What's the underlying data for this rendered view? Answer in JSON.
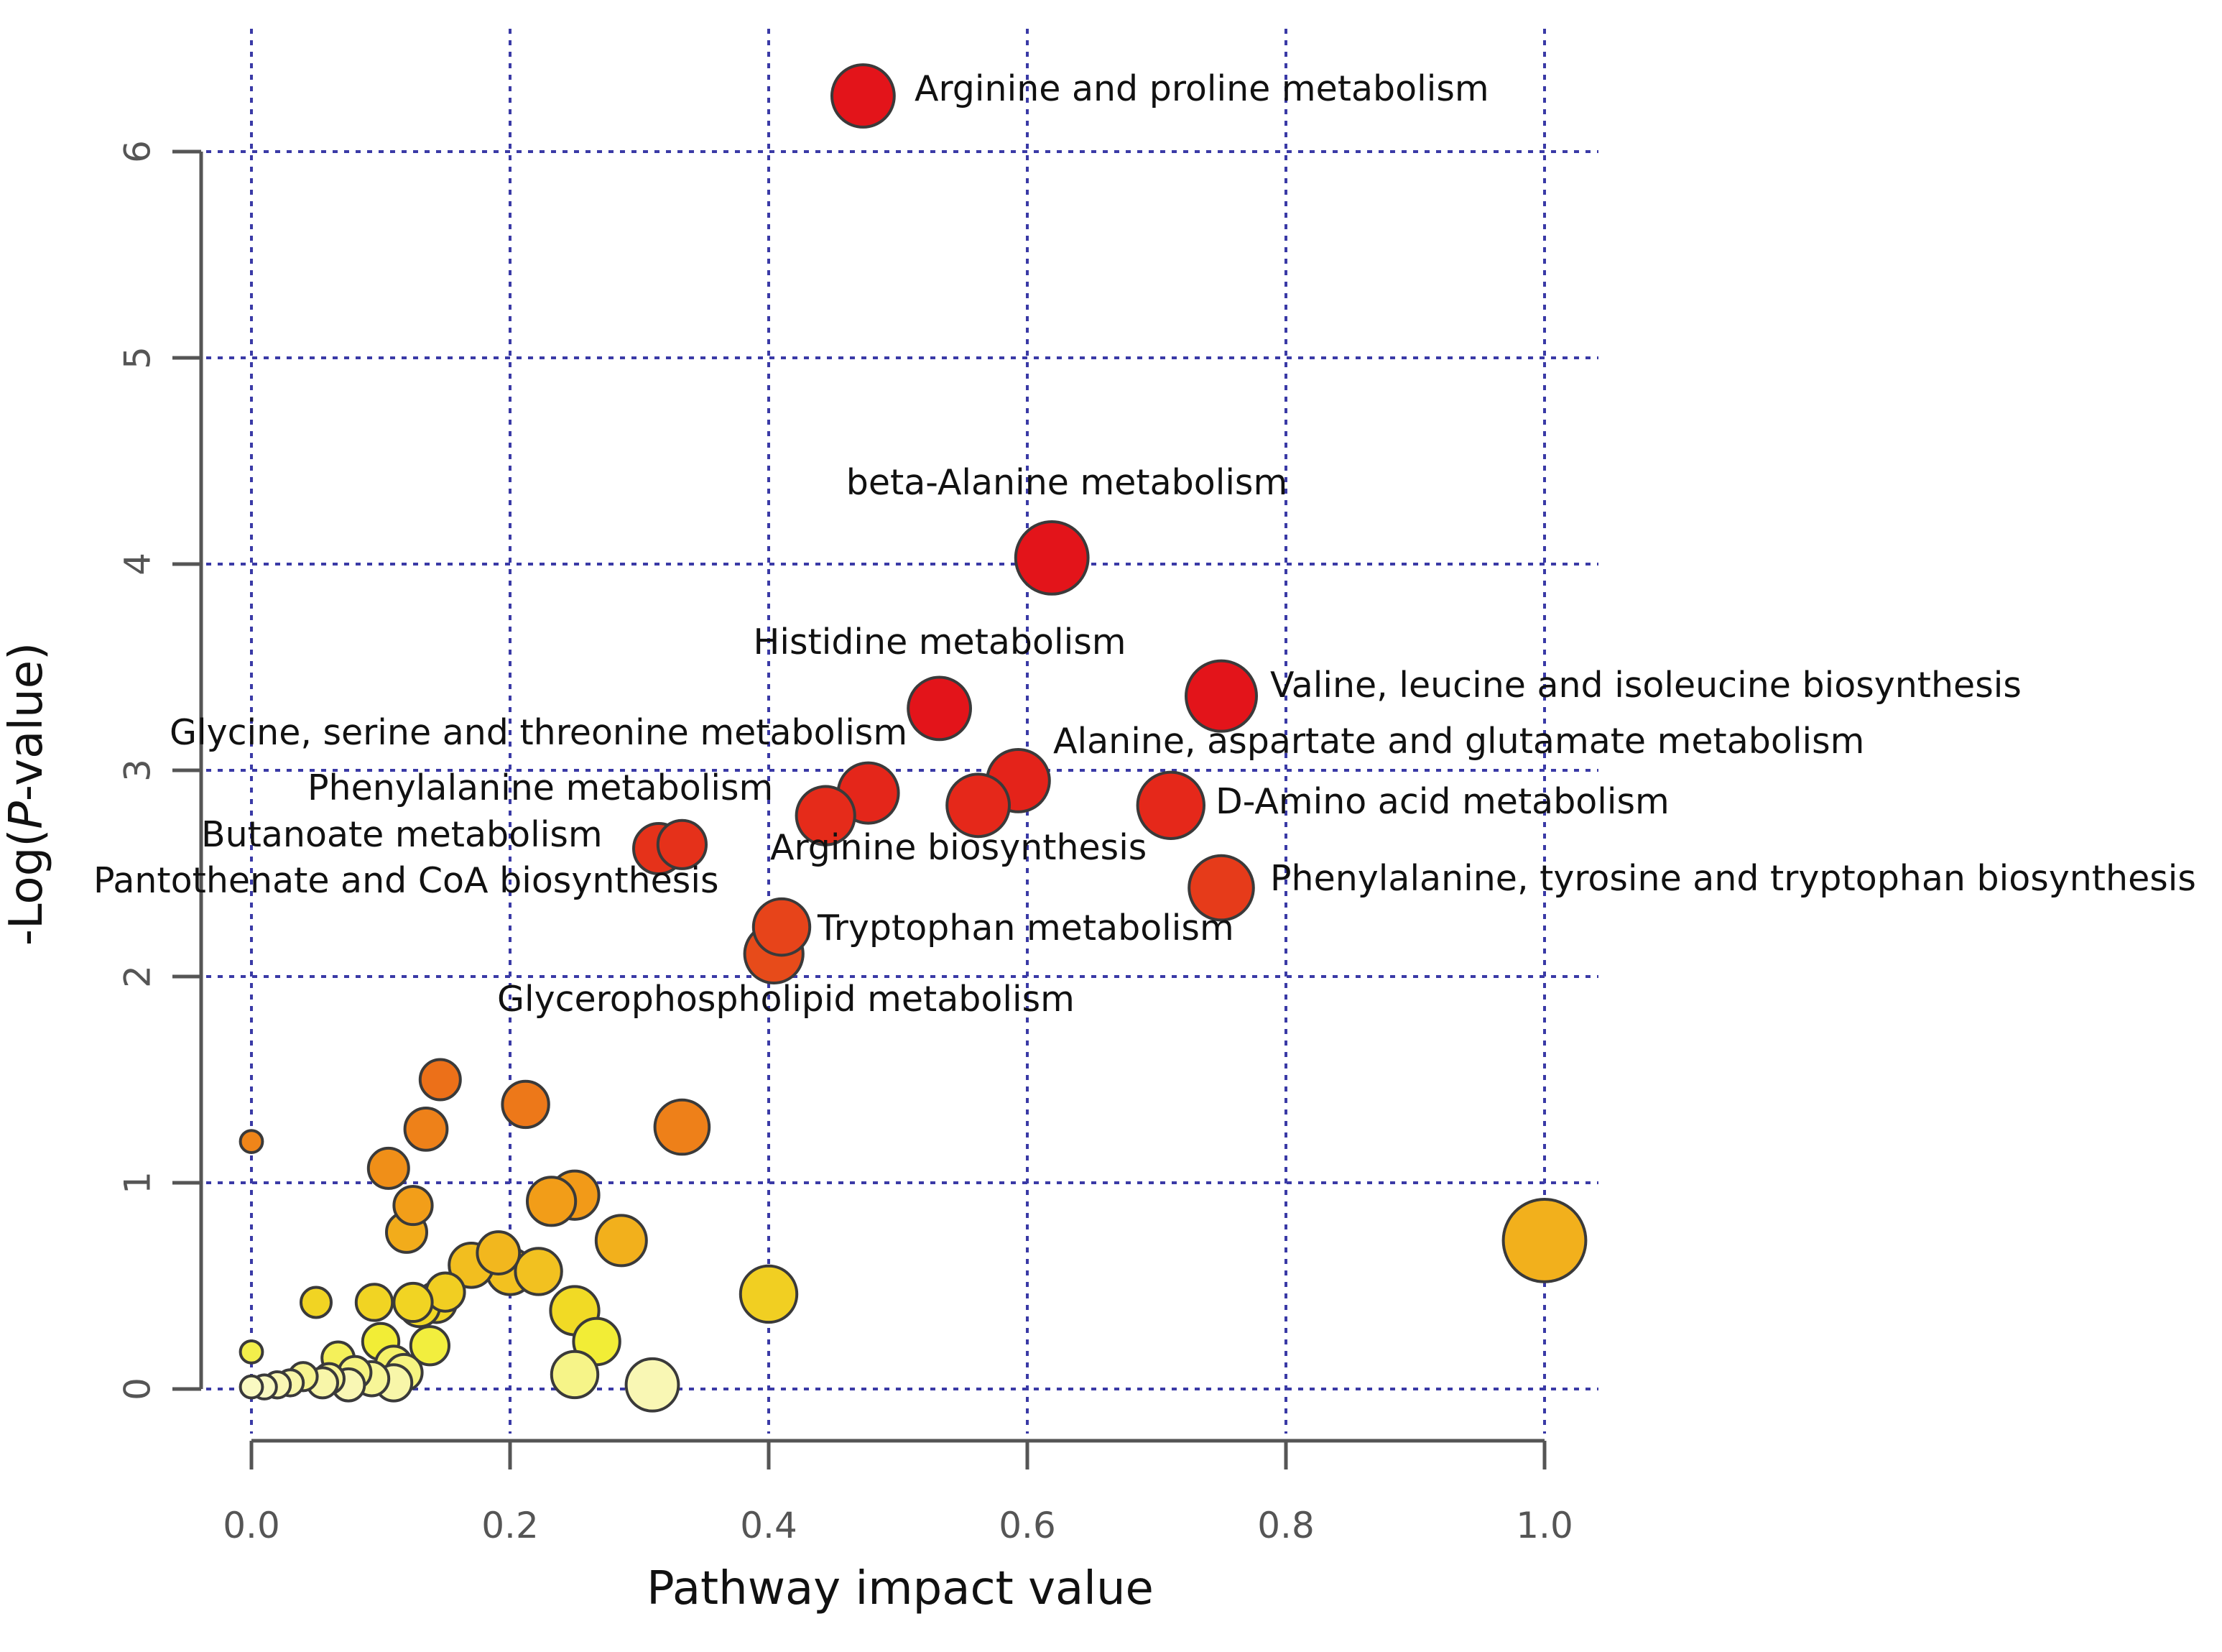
{
  "chart_data": {
    "type": "scatter",
    "xlabel": "Pathway impact value",
    "ylabel": "-Log(P-value)",
    "ylabel_parts": [
      "-Log(",
      "P",
      "-value)"
    ],
    "xlim": [
      0.0,
      1.0
    ],
    "ylim": [
      0,
      6
    ],
    "x_ticks": [
      "0.0",
      "0.2",
      "0.4",
      "0.6",
      "0.8",
      "1.0"
    ],
    "y_ticks": [
      "0",
      "1",
      "2",
      "3",
      "4",
      "5",
      "6"
    ],
    "grid": true,
    "color_scale": [
      "#fbfbe0",
      "#f1ec28",
      "#f29a18",
      "#e8531a",
      "#e3141a"
    ],
    "points": [
      {
        "x": 0.473,
        "y": 6.27,
        "size": 0.62,
        "label": "Arginine and proline metabolism"
      },
      {
        "x": 0.619,
        "y": 4.03,
        "size": 0.72,
        "label": "beta-Alanine metabolism"
      },
      {
        "x": 0.532,
        "y": 3.3,
        "size": 0.62,
        "label": "Histidine metabolism"
      },
      {
        "x": 0.75,
        "y": 3.36,
        "size": 0.7,
        "label": "Valine, leucine and isoleucine biosynthesis"
      },
      {
        "x": 0.477,
        "y": 2.89,
        "size": 0.6,
        "label": "Glycine, serine and threonine metabolism"
      },
      {
        "x": 0.593,
        "y": 2.95,
        "size": 0.62,
        "label": "Alanine, aspartate and glutamate metabolism"
      },
      {
        "x": 0.444,
        "y": 2.78,
        "size": 0.58,
        "label": "Phenylalanine metabolism"
      },
      {
        "x": 0.562,
        "y": 2.83,
        "size": 0.62,
        "label": "Arginine biosynthesis"
      },
      {
        "x": 0.711,
        "y": 2.83,
        "size": 0.66,
        "label": "D-Amino acid metabolism"
      },
      {
        "x": 0.333,
        "y": 2.64,
        "size": 0.48,
        "label": "Butanoate metabolism"
      },
      {
        "x": 0.315,
        "y": 2.62,
        "size": 0.5,
        "label": "Pantothenate and CoA biosynthesis"
      },
      {
        "x": 0.75,
        "y": 2.43,
        "size": 0.64,
        "label": "Phenylalanine, tyrosine and tryptophan biosynthesis"
      },
      {
        "x": 0.41,
        "y": 2.24,
        "size": 0.56,
        "label": "Tryptophan metabolism"
      },
      {
        "x": 0.404,
        "y": 2.11,
        "size": 0.58,
        "label": "Glycerophospholipid metabolism"
      },
      {
        "x": 0.146,
        "y": 1.5,
        "size": 0.4,
        "label": ""
      },
      {
        "x": 0.212,
        "y": 1.38,
        "size": 0.46,
        "label": ""
      },
      {
        "x": 0.333,
        "y": 1.27,
        "size": 0.54,
        "label": ""
      },
      {
        "x": 0.135,
        "y": 1.26,
        "size": 0.42,
        "label": ""
      },
      {
        "x": 0.0,
        "y": 1.2,
        "size": 0.22,
        "label": ""
      },
      {
        "x": 0.106,
        "y": 1.07,
        "size": 0.4,
        "label": ""
      },
      {
        "x": 0.25,
        "y": 0.94,
        "size": 0.48,
        "label": ""
      },
      {
        "x": 0.232,
        "y": 0.91,
        "size": 0.48,
        "label": ""
      },
      {
        "x": 0.125,
        "y": 0.89,
        "size": 0.38,
        "label": ""
      },
      {
        "x": 0.12,
        "y": 0.76,
        "size": 0.4,
        "label": ""
      },
      {
        "x": 1.0,
        "y": 0.72,
        "size": 0.82,
        "label": ""
      },
      {
        "x": 0.286,
        "y": 0.72,
        "size": 0.5,
        "label": ""
      },
      {
        "x": 0.191,
        "y": 0.66,
        "size": 0.42,
        "label": ""
      },
      {
        "x": 0.17,
        "y": 0.6,
        "size": 0.44,
        "label": ""
      },
      {
        "x": 0.2,
        "y": 0.57,
        "size": 0.46,
        "label": ""
      },
      {
        "x": 0.222,
        "y": 0.57,
        "size": 0.46,
        "label": ""
      },
      {
        "x": 0.4,
        "y": 0.46,
        "size": 0.56,
        "label": ""
      },
      {
        "x": 0.15,
        "y": 0.47,
        "size": 0.38,
        "label": ""
      },
      {
        "x": 0.143,
        "y": 0.42,
        "size": 0.4,
        "label": ""
      },
      {
        "x": 0.125,
        "y": 0.42,
        "size": 0.38,
        "label": ""
      },
      {
        "x": 0.095,
        "y": 0.42,
        "size": 0.36,
        "label": ""
      },
      {
        "x": 0.05,
        "y": 0.42,
        "size": 0.3,
        "label": ""
      },
      {
        "x": 0.13,
        "y": 0.4,
        "size": 0.4,
        "label": ""
      },
      {
        "x": 0.25,
        "y": 0.38,
        "size": 0.48,
        "label": ""
      },
      {
        "x": 0.267,
        "y": 0.23,
        "size": 0.46,
        "label": ""
      },
      {
        "x": 0.1,
        "y": 0.23,
        "size": 0.36,
        "label": ""
      },
      {
        "x": 0.138,
        "y": 0.21,
        "size": 0.38,
        "label": ""
      },
      {
        "x": 0.0,
        "y": 0.18,
        "size": 0.22,
        "label": ""
      },
      {
        "x": 0.067,
        "y": 0.15,
        "size": 0.32,
        "label": ""
      },
      {
        "x": 0.11,
        "y": 0.12,
        "size": 0.36,
        "label": ""
      },
      {
        "x": 0.118,
        "y": 0.08,
        "size": 0.36,
        "label": ""
      },
      {
        "x": 0.25,
        "y": 0.07,
        "size": 0.46,
        "label": ""
      },
      {
        "x": 0.08,
        "y": 0.08,
        "size": 0.32,
        "label": ""
      },
      {
        "x": 0.04,
        "y": 0.06,
        "size": 0.28,
        "label": ""
      },
      {
        "x": 0.06,
        "y": 0.05,
        "size": 0.3,
        "label": ""
      },
      {
        "x": 0.093,
        "y": 0.05,
        "size": 0.34,
        "label": ""
      },
      {
        "x": 0.03,
        "y": 0.03,
        "size": 0.26,
        "label": ""
      },
      {
        "x": 0.055,
        "y": 0.03,
        "size": 0.3,
        "label": ""
      },
      {
        "x": 0.11,
        "y": 0.03,
        "size": 0.36,
        "label": ""
      },
      {
        "x": 0.075,
        "y": 0.02,
        "size": 0.32,
        "label": ""
      },
      {
        "x": 0.31,
        "y": 0.02,
        "size": 0.52,
        "label": ""
      },
      {
        "x": 0.02,
        "y": 0.02,
        "size": 0.26,
        "label": ""
      },
      {
        "x": 0.0,
        "y": 0.01,
        "size": 0.22,
        "label": ""
      },
      {
        "x": 0.01,
        "y": 0.01,
        "size": 0.24,
        "label": ""
      }
    ]
  }
}
